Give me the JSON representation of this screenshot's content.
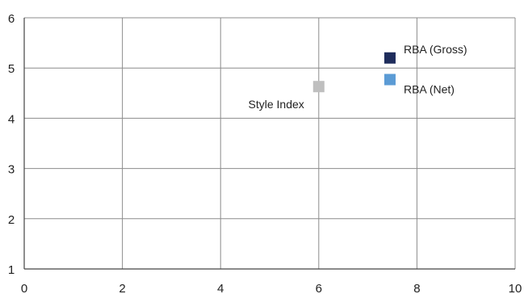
{
  "chart_data": {
    "type": "scatter",
    "title": "",
    "xlabel": "",
    "ylabel": "",
    "xlim": [
      0,
      10
    ],
    "ylim": [
      1,
      6
    ],
    "x_ticks": [
      "0",
      "2",
      "4",
      "6",
      "8",
      "10"
    ],
    "y_ticks": [
      "1",
      "2",
      "3",
      "4",
      "5",
      "6"
    ],
    "grid": true,
    "points": [
      {
        "name": "RBA (Gross)",
        "x": 7.45,
        "y": 5.2,
        "color": "#1f2d5c",
        "label_side": "right-up"
      },
      {
        "name": "RBA (Net)",
        "x": 7.45,
        "y": 4.77,
        "color": "#5b9bd5",
        "label_side": "right-down"
      },
      {
        "name": "Style Index",
        "x": 6.0,
        "y": 4.63,
        "color": "#bfbfbf",
        "label_side": "left-down"
      }
    ]
  }
}
